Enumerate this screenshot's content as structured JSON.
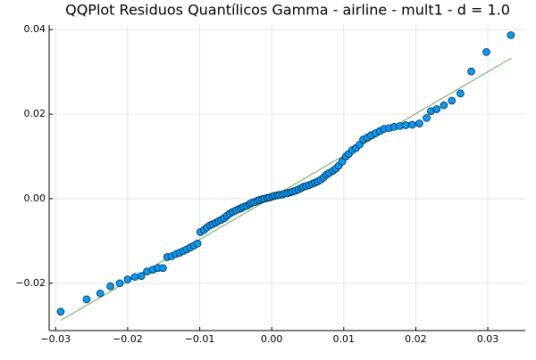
{
  "chart_data": {
    "type": "scatter",
    "title": "QQPlot Residuos Quantílicos Gamma - airline - mult1 - d = 1.0",
    "xlim": [
      -0.0309,
      0.0352
    ],
    "ylim": [
      -0.0312,
      0.0411
    ],
    "xticks": [
      {
        "value": -0.03,
        "label": "−0.03"
      },
      {
        "value": -0.02,
        "label": "−0.02"
      },
      {
        "value": -0.01,
        "label": "−0.01"
      },
      {
        "value": 0,
        "label": "0.00"
      },
      {
        "value": 0.01,
        "label": "0.01"
      },
      {
        "value": 0.02,
        "label": "0.02"
      },
      {
        "value": 0.03,
        "label": "0.03"
      }
    ],
    "yticks": [
      {
        "value": -0.02,
        "label": "−0.02"
      },
      {
        "value": 0,
        "label": "0.00"
      },
      {
        "value": 0.02,
        "label": "0.02"
      },
      {
        "value": 0.04,
        "label": "0.04"
      }
    ],
    "grid": true,
    "series": [
      {
        "mode": "markers",
        "color": "#009af9",
        "x": [
          -0.0293,
          -0.0257,
          -0.0238,
          -0.0224,
          -0.0211,
          -0.02,
          -0.019,
          -0.0181,
          -0.0173,
          -0.0165,
          -0.0158,
          -0.0151,
          -0.0145,
          -0.0139,
          -0.0133,
          -0.0128,
          -0.0123,
          -0.0118,
          -0.0113,
          -0.0108,
          -0.0103,
          -0.0099,
          -0.0094,
          -0.009,
          -0.0086,
          -0.0082,
          -0.0078,
          -0.0074,
          -0.007,
          -0.0066,
          -0.0062,
          -0.0058,
          -0.0054,
          -0.005,
          -0.0046,
          -0.0042,
          -0.0039,
          -0.0035,
          -0.0031,
          -0.0028,
          -0.0024,
          -0.002,
          -0.0017,
          -0.0013,
          -0.001,
          -0.0006,
          -0.0003,
          0.0001,
          0.0004,
          0.0008,
          0.0011,
          0.0015,
          0.0018,
          0.0022,
          0.0026,
          0.0029,
          0.0033,
          0.0037,
          0.0041,
          0.0044,
          0.0048,
          0.0052,
          0.0056,
          0.006,
          0.0064,
          0.0068,
          0.0072,
          0.0076,
          0.008,
          0.0085,
          0.0089,
          0.0093,
          0.0098,
          0.0103,
          0.0107,
          0.0112,
          0.0117,
          0.0122,
          0.0127,
          0.0133,
          0.0138,
          0.0144,
          0.015,
          0.0156,
          0.0163,
          0.017,
          0.0178,
          0.0186,
          0.0195,
          0.0205,
          0.0215,
          0.0221,
          0.0229,
          0.0239,
          0.025,
          0.0262,
          0.0277,
          0.0298,
          0.0332
        ],
        "values": [
          -0.0267,
          -0.0238,
          -0.0224,
          -0.0207,
          -0.02,
          -0.0191,
          -0.0185,
          -0.0183,
          -0.0172,
          -0.0168,
          -0.0164,
          -0.0164,
          -0.0138,
          -0.0136,
          -0.0131,
          -0.0128,
          -0.0124,
          -0.012,
          -0.0115,
          -0.0111,
          -0.0106,
          -0.0079,
          -0.0074,
          -0.0068,
          -0.0063,
          -0.006,
          -0.0057,
          -0.0053,
          -0.005,
          -0.0046,
          -0.004,
          -0.0035,
          -0.0031,
          -0.0028,
          -0.0025,
          -0.0022,
          -0.0019,
          -0.0017,
          -0.0013,
          -0.001,
          -0.0008,
          -0.0005,
          -0.0003,
          -0.0001,
          0.0,
          0.0002,
          0.0003,
          0.0005,
          0.0007,
          0.0008,
          0.0009,
          0.001,
          0.0012,
          0.0013,
          0.0015,
          0.0017,
          0.0019,
          0.0022,
          0.0025,
          0.0028,
          0.003,
          0.0032,
          0.0035,
          0.0038,
          0.0041,
          0.0045,
          0.005,
          0.0057,
          0.0061,
          0.0066,
          0.0071,
          0.0078,
          0.0088,
          0.01,
          0.0106,
          0.0115,
          0.012,
          0.0128,
          0.014,
          0.0145,
          0.015,
          0.0155,
          0.016,
          0.0165,
          0.0167,
          0.017,
          0.0172,
          0.0174,
          0.0175,
          0.0178,
          0.0191,
          0.0207,
          0.0212,
          0.0221,
          0.0232,
          0.0249,
          0.0301,
          0.0347,
          0.0387
        ]
      },
      {
        "mode": "line",
        "color": "#6aa84f",
        "x": [
          -0.0293,
          0.0333
        ],
        "values": [
          -0.0288,
          0.0333
        ]
      }
    ]
  }
}
